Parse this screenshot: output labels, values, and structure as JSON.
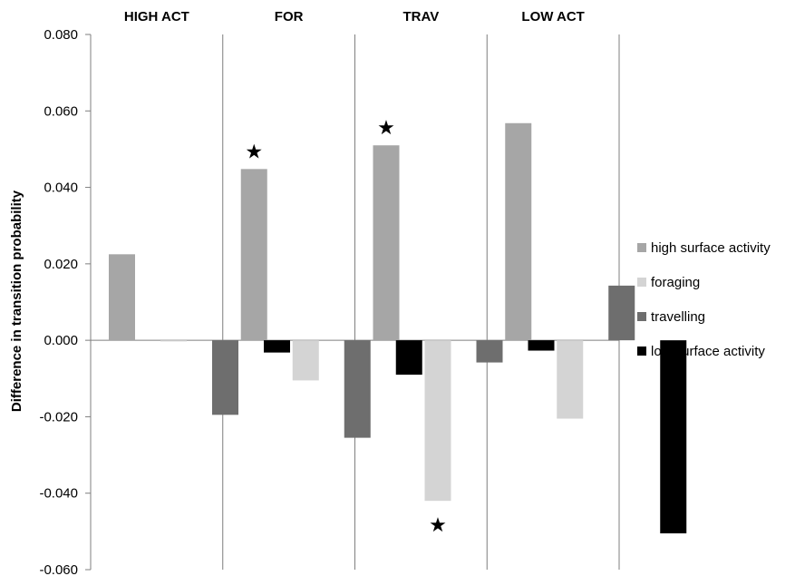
{
  "chart_data": {
    "type": "bar",
    "ylabel": "Difference in transition probability",
    "ylim": [
      -0.06,
      0.08
    ],
    "yticks": [
      "0.080",
      "0.060",
      "0.040",
      "0.020",
      "0.000",
      "-0.020",
      "-0.040",
      "-0.060"
    ],
    "ytick_values": [
      0.08,
      0.06,
      0.04,
      0.02,
      0.0,
      -0.02,
      -0.04,
      -0.06
    ],
    "categories": [
      "HIGH ACT",
      "FOR",
      "TRAV",
      "LOW ACT"
    ],
    "series": [
      {
        "name": "high surface activity",
        "color": "#a6a6a6",
        "values": [
          0.0225,
          0.0448,
          0.051,
          0.0568
        ]
      },
      {
        "name": "foraging",
        "color": "#d4d4d4",
        "values": [
          -0.0003,
          -0.0105,
          -0.042,
          -0.0205
        ]
      },
      {
        "name": "travelling",
        "color": "#6e6e6e",
        "values": [
          -0.0195,
          -0.0255,
          -0.0058,
          0.0143
        ]
      },
      {
        "name": "low surface activity",
        "color": "#000000",
        "values": [
          -0.0032,
          -0.009,
          -0.0027,
          -0.0505
        ]
      }
    ],
    "annotations": [
      {
        "text": "★",
        "category": "FOR",
        "series": "high surface activity",
        "placement": "above"
      },
      {
        "text": "★",
        "category": "TRAV",
        "series": "high surface activity",
        "placement": "above"
      },
      {
        "text": "★",
        "category": "TRAV",
        "series": "foraging",
        "placement": "below"
      }
    ],
    "grid": false,
    "legend_position": "right"
  }
}
